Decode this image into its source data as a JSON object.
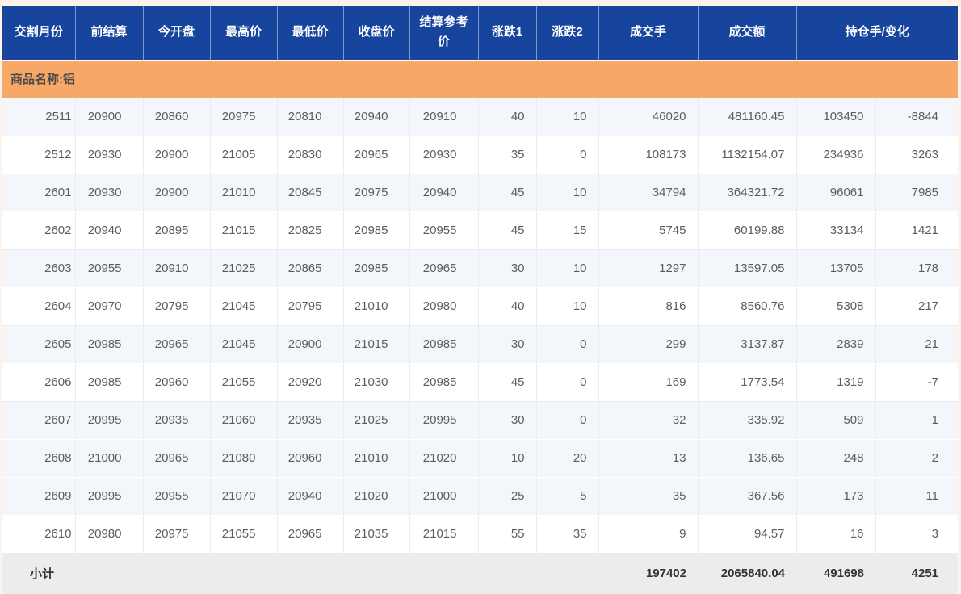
{
  "table": {
    "headers": [
      "交割月份",
      "前结算",
      "今开盘",
      "最高价",
      "最低价",
      "收盘价",
      "结算参考价",
      "涨跌1",
      "涨跌2",
      "成交手",
      "成交额",
      "持仓手/变化"
    ],
    "group_label": "商品名称:铝",
    "rows": [
      [
        "2511",
        "20900",
        "20860",
        "20975",
        "20810",
        "20940",
        "20910",
        "40",
        "10",
        "46020",
        "481160.45",
        "103450",
        "-8844"
      ],
      [
        "2512",
        "20930",
        "20900",
        "21005",
        "20830",
        "20965",
        "20930",
        "35",
        "0",
        "108173",
        "1132154.07",
        "234936",
        "3263"
      ],
      [
        "2601",
        "20930",
        "20900",
        "21010",
        "20845",
        "20975",
        "20940",
        "45",
        "10",
        "34794",
        "364321.72",
        "96061",
        "7985"
      ],
      [
        "2602",
        "20940",
        "20895",
        "21015",
        "20825",
        "20985",
        "20955",
        "45",
        "15",
        "5745",
        "60199.88",
        "33134",
        "1421"
      ],
      [
        "2603",
        "20955",
        "20910",
        "21025",
        "20865",
        "20985",
        "20965",
        "30",
        "10",
        "1297",
        "13597.05",
        "13705",
        "178"
      ],
      [
        "2604",
        "20970",
        "20795",
        "21045",
        "20795",
        "21010",
        "20980",
        "40",
        "10",
        "816",
        "8560.76",
        "5308",
        "217"
      ],
      [
        "2605",
        "20985",
        "20965",
        "21045",
        "20900",
        "21015",
        "20985",
        "30",
        "0",
        "299",
        "3137.87",
        "2839",
        "21"
      ],
      [
        "2606",
        "20985",
        "20960",
        "21055",
        "20920",
        "21030",
        "20985",
        "45",
        "0",
        "169",
        "1773.54",
        "1319",
        "-7"
      ],
      [
        "2607",
        "20995",
        "20935",
        "21060",
        "20935",
        "21025",
        "20995",
        "30",
        "0",
        "32",
        "335.92",
        "509",
        "1"
      ],
      [
        "2608",
        "21000",
        "20965",
        "21080",
        "20960",
        "21010",
        "21020",
        "10",
        "20",
        "13",
        "136.65",
        "248",
        "2"
      ],
      [
        "2609",
        "20995",
        "20955",
        "21070",
        "20940",
        "21020",
        "21000",
        "25",
        "5",
        "35",
        "367.56",
        "173",
        "11"
      ],
      [
        "2610",
        "20980",
        "20975",
        "21055",
        "20965",
        "21035",
        "21015",
        "55",
        "35",
        "9",
        "94.57",
        "16",
        "3"
      ]
    ],
    "subtotal": [
      "小计",
      "",
      "",
      "",
      "",
      "",
      "",
      "",
      "",
      "197402",
      "2065840.04",
      "491698",
      "4251"
    ]
  },
  "colors": {
    "header_bg": "#17459e",
    "group_bg": "#f8a866",
    "row_alt_bg": "#f3f6fa",
    "subtotal_bg": "#ececec",
    "frame_bg": "#fdf3ea"
  }
}
